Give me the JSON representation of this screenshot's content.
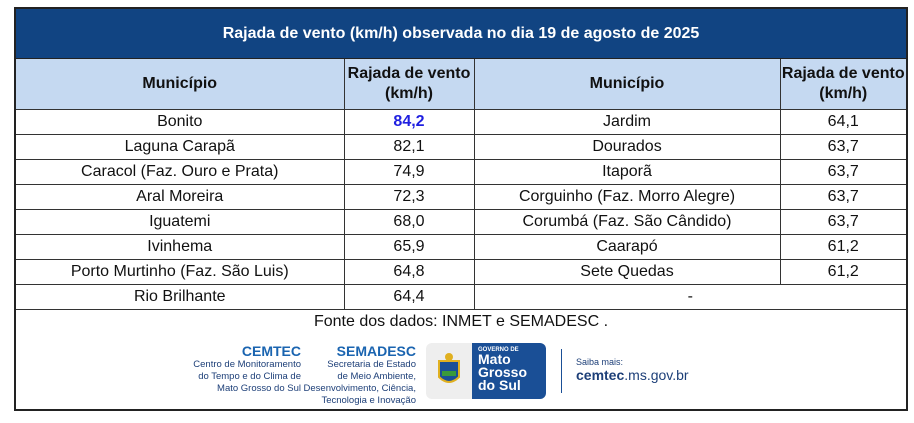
{
  "title": "Rajada de vento (km/h) observada no dia 19 de agosto de 2025",
  "headers": {
    "municipio": "Município",
    "rajada": "Rajada de vento (km/h)"
  },
  "left": [
    {
      "name": "Bonito",
      "value": "84,2",
      "highlight": true
    },
    {
      "name": "Laguna Carapã",
      "value": "82,1"
    },
    {
      "name": "Caracol (Faz. Ouro e Prata)",
      "value": "74,9"
    },
    {
      "name": "Aral Moreira",
      "value": "72,3"
    },
    {
      "name": "Iguatemi",
      "value": "68,0"
    },
    {
      "name": "Ivinhema",
      "value": "65,9"
    },
    {
      "name": "Porto Murtinho (Faz. São Luis)",
      "value": "64,8"
    },
    {
      "name": "Rio Brilhante",
      "value": "64,4"
    }
  ],
  "right": [
    {
      "name": "Jardim",
      "value": "64,1"
    },
    {
      "name": "Dourados",
      "value": "63,7"
    },
    {
      "name": "Itaporã",
      "value": "63,7"
    },
    {
      "name": "Corguinho (Faz. Morro Alegre)",
      "value": "63,7"
    },
    {
      "name": "Corumbá (Faz. São Cândido)",
      "value": "63,7"
    },
    {
      "name": "Caarapó",
      "value": "61,2"
    },
    {
      "name": "Sete Quedas",
      "value": "61,2"
    },
    {
      "name": "-",
      "value": ""
    }
  ],
  "source": "Fonte dos dados: INMET e SEMADESC .",
  "footer": {
    "cemtec": {
      "name": "CEMTEC",
      "desc": [
        "Centro de Monitoramento",
        "do Tempo e do Clima de",
        "Mato Grosso do Sul"
      ]
    },
    "semadesc": {
      "name": "SEMADESC",
      "desc": [
        "Secretaria de Estado",
        "de Meio Ambiente,",
        "Desenvolvimento, Ciência,",
        "Tecnologia e Inovação"
      ]
    },
    "gov": {
      "small": "GOVERNO DE",
      "lines": [
        "Mato",
        "Grosso",
        "do Sul"
      ]
    },
    "site_label": "Saiba mais:",
    "site_bold": "cemtec",
    "site_rest": ".ms.gov.br"
  },
  "colors": {
    "title_bg": "#114482",
    "header_bg": "#c5d9f1",
    "highlight": "#1f1fe0"
  }
}
